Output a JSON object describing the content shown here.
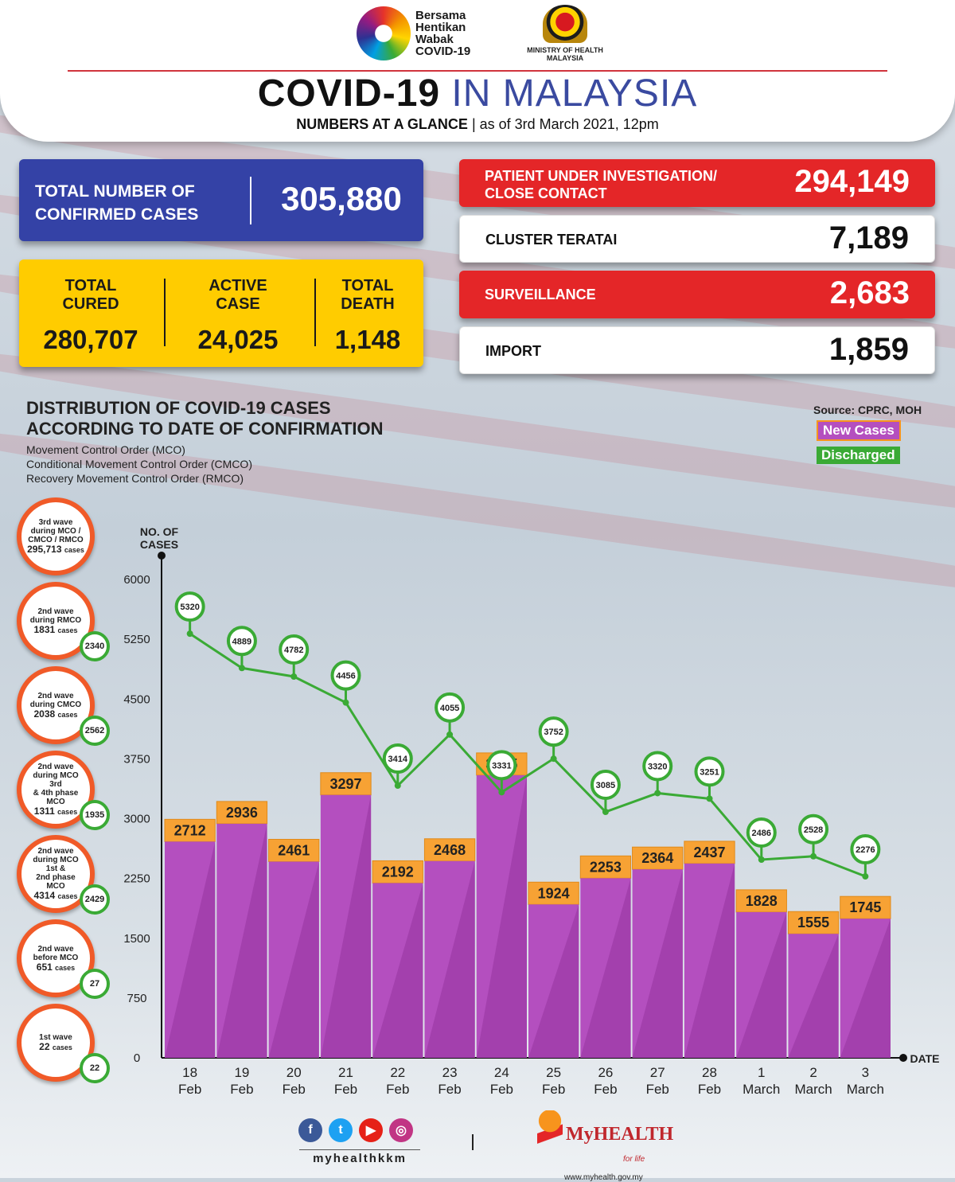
{
  "header": {
    "campaign_text": "Bersama Hentikan Wabak COVID-19",
    "ministry": "MINISTRY OF HEALTH MALAYSIA",
    "title_part1": "COVID-19",
    "title_part2": "IN MALAYSIA",
    "subtitle_bold": "NUMBERS AT A GLANCE",
    "subtitle_date": "as of 3rd March 2021, 12pm"
  },
  "totals": {
    "confirmed_label": "TOTAL NUMBER OF CONFIRMED CASES",
    "confirmed_value": "305,880",
    "cured_label": "TOTAL CURED",
    "cured_value": "280,707",
    "active_label": "ACTIVE CASE",
    "active_value": "24,025",
    "death_label": "TOTAL DEATH",
    "death_value": "1,148"
  },
  "stats": [
    {
      "label": "PATIENT UNDER INVESTIGATION/ CLOSE CONTACT",
      "value": "294,149",
      "color": "#e42628"
    },
    {
      "label": "CLUSTER TERATAI",
      "value": "7,189",
      "color": "#ffffff"
    },
    {
      "label": "SURVEILLANCE",
      "value": "2,683",
      "color": "#e42628"
    },
    {
      "label": "IMPORT",
      "value": "1,859",
      "color": "#ffffff"
    }
  ],
  "chart_section": {
    "title_line1": "DISTRIBUTION OF COVID-19 CASES",
    "title_line2": "ACCORDING TO DATE OF CONFIRMATION",
    "note1": "Movement Control Order (MCO)",
    "note2": "Conditional Movement Control Order (CMCO)",
    "note3": "Recovery Movement Control Order (RMCO)",
    "source": "Source: CPRC, MOH",
    "legend_new": "New Cases",
    "legend_discharged": "Discharged"
  },
  "waves": [
    {
      "lines": [
        "3rd wave",
        "during MCO /",
        "CMCO / RMCO"
      ],
      "count": "295,713",
      "unit": "cases",
      "discharged": ""
    },
    {
      "lines": [
        "2nd wave",
        "during RMCO"
      ],
      "count": "1831",
      "unit": "cases",
      "discharged": "2340"
    },
    {
      "lines": [
        "2nd wave",
        "during CMCO"
      ],
      "count": "2038",
      "unit": "cases",
      "discharged": "2562"
    },
    {
      "lines": [
        "2nd wave",
        "during MCO 3rd",
        "& 4th phase MCO"
      ],
      "count": "1311",
      "unit": "cases",
      "discharged": "1935"
    },
    {
      "lines": [
        "2nd wave",
        "during MCO 1st &",
        "2nd phase MCO"
      ],
      "count": "4314",
      "unit": "cases",
      "discharged": "2429"
    },
    {
      "lines": [
        "2nd wave",
        "before MCO"
      ],
      "count": "651",
      "unit": "cases",
      "discharged": "27"
    },
    {
      "lines": [
        "1st wave"
      ],
      "count": "22",
      "unit": "cases",
      "discharged": "22"
    }
  ],
  "chart_data": {
    "type": "bar",
    "ylabel": "NO. OF CASES",
    "xlabel": "DATE",
    "ylim": [
      0,
      6000
    ],
    "yticks": [
      0,
      750,
      1500,
      2250,
      3000,
      3750,
      4500,
      5250,
      6000
    ],
    "categories": [
      [
        "18",
        "Feb"
      ],
      [
        "19",
        "Feb"
      ],
      [
        "20",
        "Feb"
      ],
      [
        "21",
        "Feb"
      ],
      [
        "22",
        "Feb"
      ],
      [
        "23",
        "Feb"
      ],
      [
        "24",
        "Feb"
      ],
      [
        "25",
        "Feb"
      ],
      [
        "26",
        "Feb"
      ],
      [
        "27",
        "Feb"
      ],
      [
        "28",
        "Feb"
      ],
      [
        "1",
        "March"
      ],
      [
        "2",
        "March"
      ],
      [
        "3",
        "March"
      ]
    ],
    "series": [
      {
        "name": "New Cases",
        "type": "bar",
        "color": "#b44fbf",
        "values": [
          2712,
          2936,
          2461,
          3297,
          2192,
          2468,
          3545,
          1924,
          2253,
          2364,
          2437,
          1828,
          1555,
          1745
        ]
      },
      {
        "name": "Discharged",
        "type": "line",
        "color": "#3aaa35",
        "values": [
          5320,
          4889,
          4782,
          4456,
          3414,
          4055,
          3331,
          3752,
          3085,
          3320,
          3251,
          2486,
          2528,
          2276
        ]
      }
    ]
  },
  "footer": {
    "handle": "myhealthkkm",
    "brand": "MyHEALTH",
    "tagline": "for life",
    "url": "www.myhealth.gov.my"
  }
}
